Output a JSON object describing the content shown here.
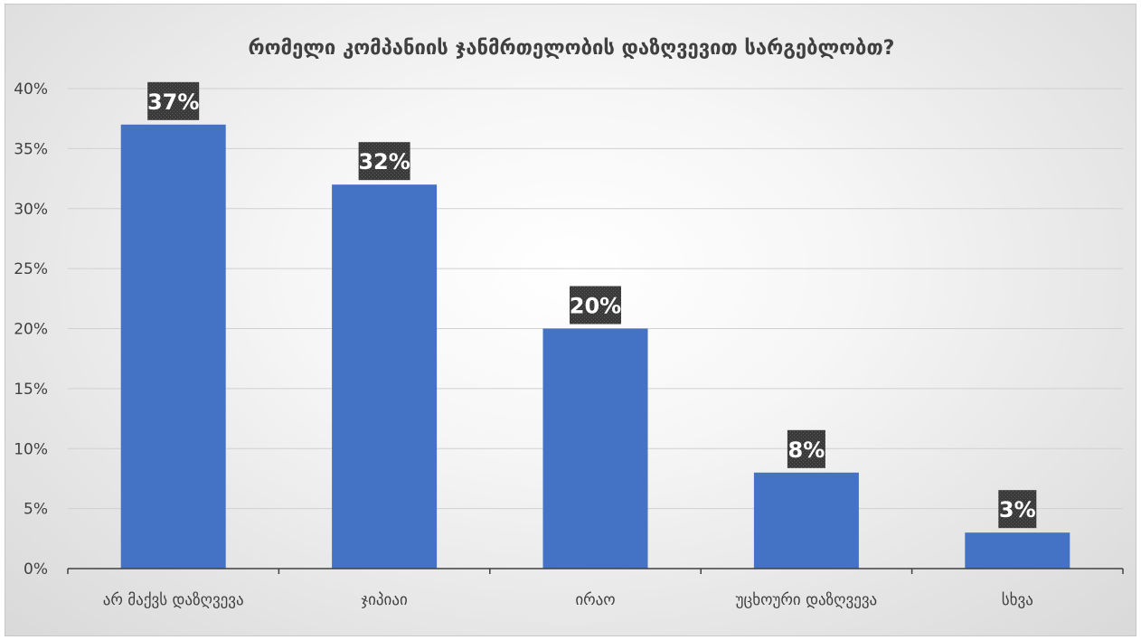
{
  "chart_data": {
    "type": "bar",
    "title": "რომელი კომპანიის ჯანმრთელობის დაზღვევით სარგებლობთ?",
    "xlabel": "",
    "ylabel": "",
    "categories": [
      "არ მაქვს დაზღვევა",
      "ჯიპიაი",
      "ირაო",
      "უცხოური დაზღვევა",
      "სხვა"
    ],
    "values": [
      37,
      32,
      20,
      8,
      3
    ],
    "data_labels": [
      "37%",
      "32%",
      "20%",
      "8%",
      "3%"
    ],
    "ylim": [
      0,
      40
    ],
    "yticks": [
      0,
      5,
      10,
      15,
      20,
      25,
      30,
      35,
      40
    ],
    "ytick_labels": [
      "0%",
      "5%",
      "10%",
      "15%",
      "20%",
      "25%",
      "30%",
      "35%",
      "40%"
    ],
    "grid": true,
    "legend": "none",
    "colors": {
      "bar": "#4472c4",
      "grid": "#d0d0d0",
      "axis": "#404040",
      "label_box": "#3a3a3a"
    }
  }
}
